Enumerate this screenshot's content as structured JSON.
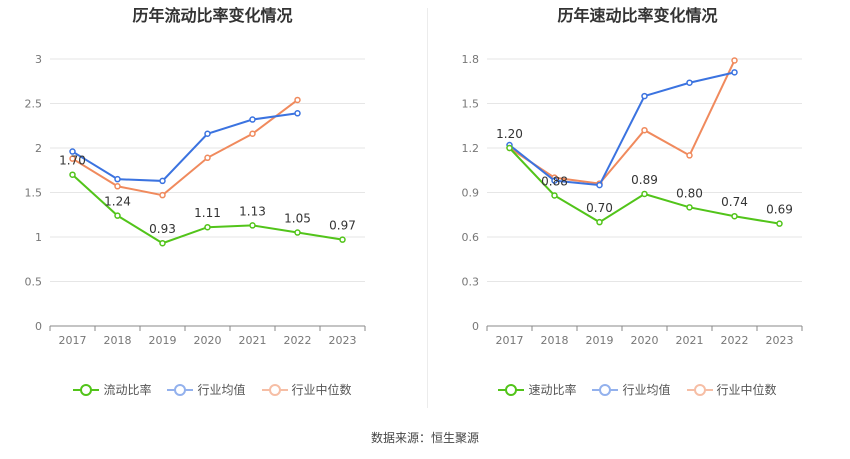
{
  "source": "数据来源：恒生聚源",
  "chart_data": [
    {
      "type": "line",
      "title": "历年流动比率变化情况",
      "categories": [
        "2017",
        "2018",
        "2019",
        "2020",
        "2021",
        "2022",
        "2023"
      ],
      "ylim": [
        0,
        3
      ],
      "yticks": [
        "0",
        "0.5",
        "1",
        "1.5",
        "2",
        "2.5",
        "3"
      ],
      "grid": true,
      "legend_position": "bottom",
      "series": [
        {
          "name": "流动比率",
          "color": "#52c41a",
          "values": [
            1.7,
            1.24,
            0.93,
            1.11,
            1.13,
            1.05,
            0.97
          ],
          "labels": [
            "1.70",
            "1.24",
            "0.93",
            "1.11",
            "1.13",
            "1.05",
            "0.97"
          ]
        },
        {
          "name": "行业均值",
          "color": "#3b73e0",
          "values": [
            1.96,
            1.65,
            1.63,
            2.16,
            2.32,
            2.39,
            null
          ]
        },
        {
          "name": "行业中位数",
          "color": "#f08a5d",
          "values": [
            1.88,
            1.57,
            1.47,
            1.89,
            2.16,
            2.54,
            null
          ]
        }
      ]
    },
    {
      "type": "line",
      "title": "历年速动比率变化情况",
      "categories": [
        "2017",
        "2018",
        "2019",
        "2020",
        "2021",
        "2022",
        "2023"
      ],
      "ylim": [
        0,
        1.8
      ],
      "yticks": [
        "0",
        "0.3",
        "0.6",
        "0.9",
        "1.2",
        "1.5",
        "1.8"
      ],
      "grid": true,
      "legend_position": "bottom",
      "series": [
        {
          "name": "速动比率",
          "color": "#52c41a",
          "values": [
            1.2,
            0.88,
            0.7,
            0.89,
            0.8,
            0.74,
            0.69
          ],
          "labels": [
            "1.20",
            "0.88",
            "0.70",
            "0.89",
            "0.80",
            "0.74",
            "0.69"
          ]
        },
        {
          "name": "行业均值",
          "color": "#3b73e0",
          "values": [
            1.22,
            0.98,
            0.95,
            1.55,
            1.64,
            1.71,
            null
          ]
        },
        {
          "name": "行业中位数",
          "color": "#f08a5d",
          "values": [
            1.2,
            1.0,
            0.96,
            1.32,
            1.15,
            1.79,
            null
          ]
        }
      ]
    }
  ]
}
